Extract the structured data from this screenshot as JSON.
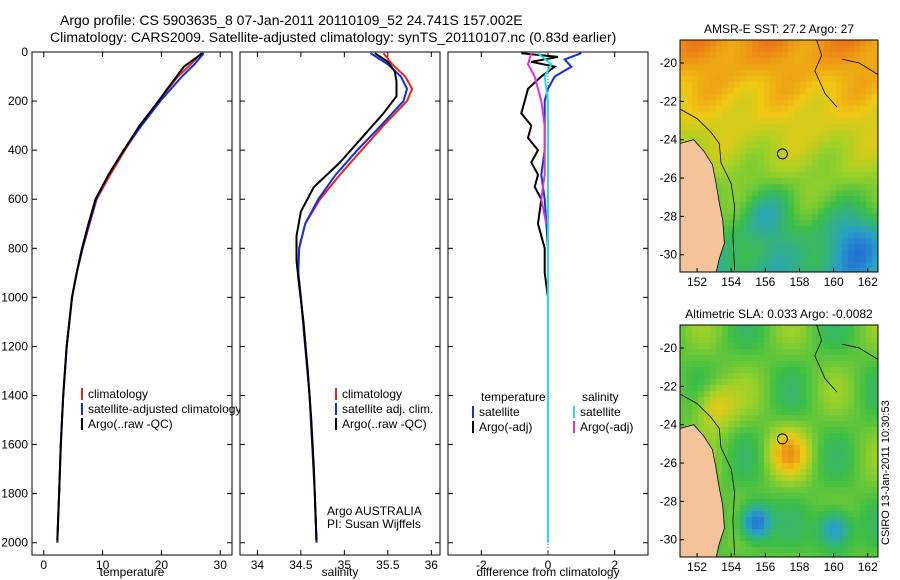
{
  "header": {
    "line1": "Argo profile: CS 5903635_8 07-Jan-2011 20110109_52 24.741S 157.002E",
    "line2": "Climatology: CARS2009. Satellite-adjusted climatology: synTS_20110107.nc (0.83d earlier)"
  },
  "side_label": "CSIRO 13-Jan-2011 10:30:53",
  "colors": {
    "climatology": "#e8261f",
    "satellite": "#1030e0",
    "argo": "#000000",
    "cyan": "#20e0e0",
    "magenta": "#e030e0",
    "land": "#f5c39a"
  },
  "chart_data": [
    {
      "type": "line",
      "panel": "temperature",
      "xlabel": "temperature",
      "ylabel": "",
      "xlim": [
        -2,
        32
      ],
      "ylim": [
        2050,
        0
      ],
      "xticks": [
        0,
        10,
        20,
        30
      ],
      "yticks": [
        0,
        200,
        400,
        600,
        800,
        1000,
        1200,
        1400,
        1600,
        1800,
        2000
      ],
      "legend": [
        "climatology",
        "satellite-adjusted climatology",
        "Argo(..raw -QC)"
      ],
      "series": [
        {
          "name": "climatology",
          "color": "#e8261f",
          "depth": [
            5,
            50,
            100,
            200,
            300,
            400,
            500,
            600,
            700,
            800,
            900,
            1000,
            1200,
            1400,
            1600,
            1800,
            2000
          ],
          "values": [
            26.8,
            25.0,
            22.8,
            19.5,
            16.5,
            13.8,
            11.3,
            9.0,
            7.8,
            6.6,
            5.6,
            4.8,
            3.9,
            3.3,
            2.9,
            2.6,
            2.3
          ]
        },
        {
          "name": "satellite-adjusted climatology",
          "color": "#1030e0",
          "depth": [
            5,
            50,
            100,
            200,
            300,
            400,
            500,
            600,
            700,
            800,
            900,
            1000,
            1200,
            1400,
            1600,
            1800,
            2000
          ],
          "values": [
            27.2,
            25.6,
            23.5,
            19.8,
            16.6,
            13.6,
            11.0,
            8.9,
            7.7,
            6.6,
            5.6,
            4.8,
            3.9,
            3.3,
            2.9,
            2.6,
            2.3
          ]
        },
        {
          "name": "Argo(..raw -QC)",
          "color": "#000000",
          "depth": [
            5,
            30,
            60,
            100,
            150,
            200,
            300,
            400,
            500,
            600,
            700,
            800,
            900,
            1000,
            1200,
            1400,
            1600,
            1800,
            1990
          ],
          "values": [
            27.0,
            25.5,
            23.8,
            22.6,
            21.0,
            19.5,
            16.3,
            13.6,
            11.0,
            8.8,
            7.6,
            6.5,
            5.6,
            4.8,
            3.9,
            3.3,
            2.9,
            2.6,
            2.3
          ]
        }
      ]
    },
    {
      "type": "line",
      "panel": "salinity",
      "xlabel": "salinity",
      "xlim": [
        33.8,
        36.1
      ],
      "ylim": [
        2050,
        0
      ],
      "xticks": [
        34,
        34.5,
        35,
        35.5,
        36
      ],
      "legend": [
        "climatology",
        "satellite adj. clim.",
        "Argo(..raw -QC)"
      ],
      "annotation": [
        "Argo AUSTRALIA",
        "PI: Susan Wijffels"
      ],
      "series": [
        {
          "name": "climatology",
          "color": "#e8261f",
          "depth": [
            5,
            50,
            100,
            150,
            200,
            300,
            400,
            500,
            600,
            700,
            800,
            900,
            1000,
            1200,
            1400,
            1600,
            1800,
            2000
          ],
          "values": [
            35.45,
            35.55,
            35.7,
            35.78,
            35.72,
            35.45,
            35.2,
            34.95,
            34.72,
            34.55,
            34.48,
            34.47,
            34.5,
            34.55,
            34.6,
            34.63,
            34.66,
            34.68
          ]
        },
        {
          "name": "satellite adj. clim.",
          "color": "#1030e0",
          "depth": [
            5,
            50,
            100,
            150,
            200,
            300,
            400,
            500,
            600,
            700,
            800,
            900,
            1000,
            1200,
            1400,
            1600,
            1800,
            2000
          ],
          "values": [
            35.3,
            35.5,
            35.65,
            35.72,
            35.68,
            35.42,
            35.15,
            34.9,
            34.7,
            34.55,
            34.48,
            34.47,
            34.5,
            34.55,
            34.6,
            34.63,
            34.66,
            34.68
          ]
        },
        {
          "name": "Argo(..raw -QC)",
          "color": "#000000",
          "depth": [
            5,
            40,
            80,
            120,
            180,
            250,
            350,
            450,
            550,
            650,
            750,
            850,
            950,
            1100,
            1300,
            1500,
            1700,
            1990
          ],
          "values": [
            35.35,
            35.5,
            35.58,
            35.6,
            35.6,
            35.45,
            35.2,
            34.95,
            34.65,
            34.5,
            34.45,
            34.45,
            34.48,
            34.53,
            34.58,
            34.62,
            34.65,
            34.68
          ]
        }
      ]
    },
    {
      "type": "line",
      "panel": "difference",
      "xlabel": "difference from climatology",
      "xlim": [
        -3,
        3
      ],
      "ylim": [
        2050,
        0
      ],
      "xticks": [
        -2,
        0,
        2
      ],
      "legend_headers": [
        "temperature",
        "salinity"
      ],
      "legend": [
        "satellite",
        "Argo(-adj)",
        "satellite",
        "Argo(-adj)"
      ],
      "series": [
        {
          "name": "temperature satellite",
          "color": "#1030e0",
          "depth": [
            5,
            30,
            60,
            100,
            150,
            200,
            300,
            400,
            500,
            600,
            800,
            1000,
            1400,
            1990
          ],
          "values": [
            1.0,
            0.5,
            0.7,
            0.2,
            0.0,
            -0.1,
            -0.1,
            -0.1,
            -0.2,
            -0.1,
            0.0,
            0.0,
            0.0,
            0.0
          ]
        },
        {
          "name": "temperature Argo(-adj)",
          "color": "#000000",
          "depth": [
            5,
            20,
            40,
            60,
            100,
            150,
            200,
            250,
            300,
            350,
            400,
            450,
            500,
            550,
            600,
            700,
            800,
            900,
            1000
          ],
          "values": [
            -0.8,
            0.3,
            -0.5,
            0.2,
            -0.2,
            -0.6,
            -0.7,
            -0.8,
            -0.5,
            -0.6,
            -0.3,
            -0.5,
            -0.3,
            -0.4,
            -0.2,
            -0.3,
            -0.1,
            -0.1,
            0.0
          ]
        },
        {
          "name": "salinity satellite",
          "color": "#20e0e0",
          "depth": [
            5,
            50,
            100,
            200,
            400,
            600,
            800,
            1000,
            1400,
            2000
          ],
          "values": [
            -0.3,
            0.1,
            -0.1,
            0.0,
            0.0,
            0.0,
            0.0,
            0.0,
            0.0,
            0.0
          ]
        },
        {
          "name": "salinity Argo(-adj)",
          "color": "#e030e0",
          "depth": [
            5,
            50,
            100,
            150,
            200,
            300,
            400,
            500,
            600,
            700
          ],
          "values": [
            -0.5,
            -0.6,
            -0.4,
            -0.3,
            -0.2,
            -0.1,
            -0.1,
            -0.1,
            -0.2,
            -0.05
          ]
        }
      ]
    },
    {
      "type": "heatmap",
      "panel": "map1",
      "title": "AMSR-E SST: 27.2 Argo: 27",
      "xlim": [
        151,
        162.6
      ],
      "ylim": [
        -30.9,
        -18.8
      ],
      "xticks": [
        152,
        154,
        156,
        158,
        160,
        162
      ],
      "yticks": [
        -20,
        -22,
        -24,
        -26,
        -28,
        -30
      ],
      "float_marker": [
        157,
        -24.74
      ]
    },
    {
      "type": "heatmap",
      "panel": "map2",
      "title": "Altimetric SLA: 0.033 Argo: -0.0082",
      "xlim": [
        151,
        162.6
      ],
      "ylim": [
        -30.9,
        -18.8
      ],
      "xticks": [
        152,
        154,
        156,
        158,
        160,
        162
      ],
      "yticks": [
        -20,
        -22,
        -24,
        -26,
        -28,
        -30
      ],
      "float_marker": [
        157,
        -24.74
      ]
    }
  ]
}
